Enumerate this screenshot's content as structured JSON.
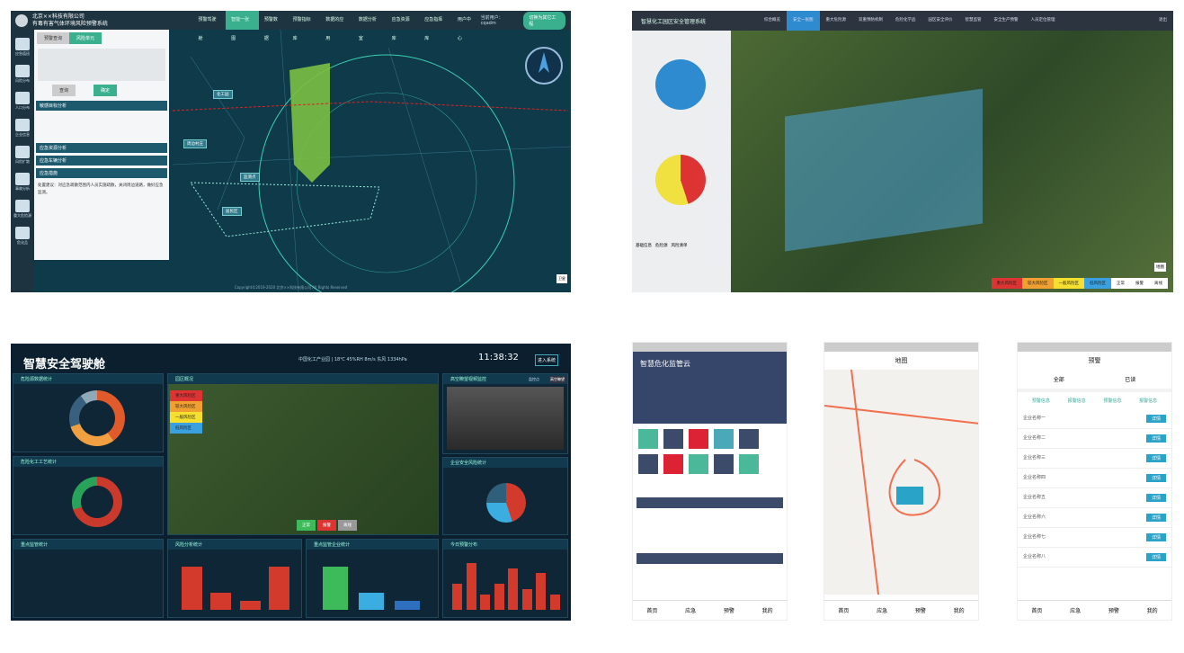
{
  "hazard_system": {
    "company": "北京××科技有限公司",
    "title": "有毒有害气体环境风险预警系统",
    "nav": [
      "预警驾驶舱",
      "智能一张图",
      "预警数据",
      "预警指标库",
      "数据的应用",
      "数据分析室",
      "应急资源库",
      "应急指挥库",
      "用户中心"
    ],
    "active_nav": 1,
    "user": "当前用户：cqadm",
    "exit": "切换为其它工程",
    "side": [
      "应急值班",
      "风险分布",
      "人口分布",
      "企业信息",
      "风险扩散",
      "事故分析",
      "重大危险源",
      "危化品"
    ],
    "panel_tabs": [
      "预警查询",
      "风险单元"
    ],
    "sections": [
      "敏感目标分析",
      "应急资源分析",
      "应急车辆分析",
      "应急措施"
    ],
    "buttons": [
      "查询",
      "确定"
    ],
    "measure": "处置建议：对应急疏散范围内人员实施疏散，关闭周边道路，做好应急监测。",
    "footer": "Copyright©2019-2020 北京××科技有限公司 All Rights Reserved",
    "map_labels": [
      "化工园",
      "周边村庄",
      "监测点",
      "居民区"
    ],
    "basemap": [
      "卫星",
      "地图"
    ]
  },
  "park_system": {
    "title": "智慧化工园区安全管理系统",
    "nav": [
      "综合概览",
      "安全一张图",
      "重大危险源",
      "双重预防机制",
      "危险化学品",
      "园区安全评价",
      "智慧监管",
      "安全生产预警",
      "人员定位管理"
    ],
    "active_nav": 1,
    "exit": "退出",
    "panel_tabs": [
      "基础信息",
      "危险源",
      "风险清单"
    ],
    "legend_risk": [
      "重大风险区",
      "较大风险区",
      "一般风险区",
      "低风险区"
    ],
    "legend_status": [
      "正常",
      "报警",
      "离线"
    ],
    "pie_blue": [
      {
        "name": "正常",
        "value": 100
      }
    ],
    "pie_risk": [
      {
        "name": "较大风险",
        "value": 45
      },
      {
        "name": "一般风险",
        "value": 55
      }
    ],
    "switch": "地图"
  },
  "cockpit": {
    "title": "智慧安全驾驶舱",
    "status": "中国化工产业园  |  18℃  45%RH  8m/s  东风  1334hPa",
    "time": "11:38:32",
    "enter": "进入系统",
    "panels": [
      "危险源数据统计",
      "园区概况",
      "高空瞭望视频监控",
      "危险化工工艺统计",
      "重点监管统计",
      "风险分析统计",
      "重点监管企业统计",
      "企业安全风险统计",
      "今日预警分布"
    ],
    "video_tabs": [
      "监控点",
      "高空瞭望"
    ],
    "legend_risk": [
      "重大风险区",
      "较大风险区",
      "一般风险区",
      "低风险区"
    ],
    "map_buttons": [
      "正常",
      "报警",
      "离线"
    ],
    "colors": {
      "red": "#d33a2c",
      "green": "#3dbb5a",
      "blue": "#3aaee0"
    }
  },
  "chart_data": [
    {
      "type": "pie",
      "values": [
        40,
        30,
        20,
        10
      ],
      "colors": [
        "#e05a2c",
        "#f0a040",
        "#3a6080",
        "#8fa9b9"
      ]
    },
    {
      "type": "pie",
      "values": [
        70,
        30
      ],
      "colors": [
        "#c93a2c",
        "#2aa35a"
      ]
    },
    {
      "type": "pie",
      "values": [
        45,
        30,
        25
      ],
      "colors": [
        "#d33a2c",
        "#3aaee0",
        "#2f5f7a"
      ]
    },
    {
      "type": "bar",
      "values": [
        10,
        4,
        2,
        10
      ],
      "ylim": [
        0,
        12
      ]
    },
    {
      "type": "bar",
      "values": [
        10,
        4,
        2
      ],
      "colors": [
        "#3dbb5a",
        "#3aaee0",
        "#2e6fc0"
      ],
      "ylim": [
        0,
        12
      ]
    },
    {
      "type": "bar",
      "values": [
        5,
        9,
        3,
        5,
        8,
        4,
        7,
        3
      ],
      "ylim": [
        0,
        10
      ]
    }
  ],
  "mobile": {
    "home_title": "智慧危化监管云",
    "tabs": [
      "首页",
      "应急",
      "预警",
      "我的"
    ],
    "map_title": "地图",
    "alert_title": "预警",
    "alert_filters": [
      "全部",
      "已读"
    ],
    "alert_chips": [
      "预警信息",
      "报警信息",
      "预警信息",
      "报警信息"
    ],
    "rows": [
      "企业名称一",
      "企业名称二",
      "企业名称三",
      "企业名称四",
      "企业名称五",
      "企业名称六",
      "企业名称七",
      "企业名称八"
    ],
    "row_btn": "详情"
  }
}
